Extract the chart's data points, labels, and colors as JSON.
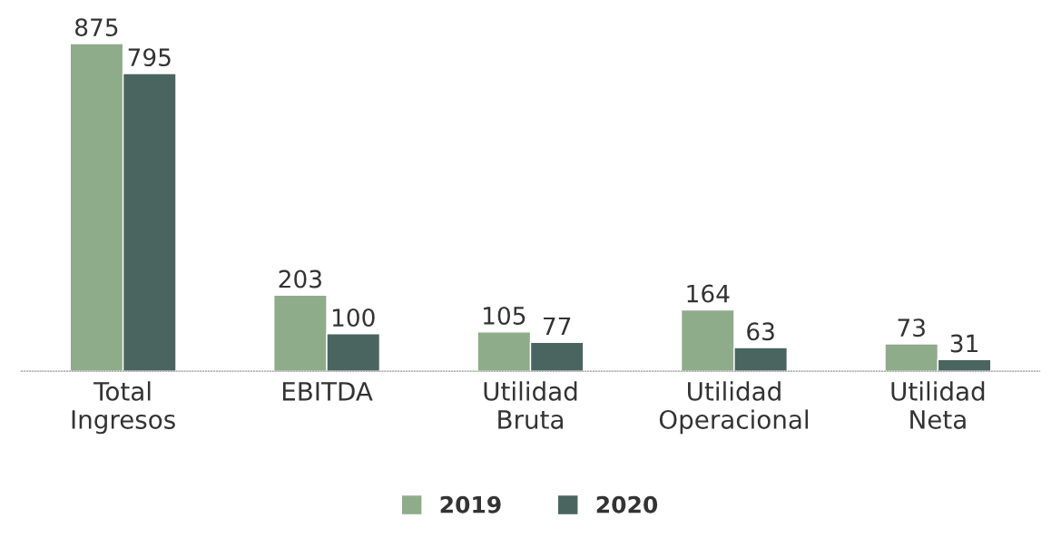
{
  "chart_data": {
    "type": "bar",
    "categories": [
      "Total\nIngresos",
      "EBITDA",
      "Utilidad\nBruta",
      "Utilidad\nOperacional",
      "Utilidad\nNeta"
    ],
    "series": [
      {
        "name": "2019",
        "color": "#8fac8a",
        "values": [
          875,
          203,
          105,
          164,
          73
        ]
      },
      {
        "name": "2020",
        "color": "#4a6560",
        "values": [
          795,
          100,
          77,
          63,
          31
        ]
      }
    ],
    "data_labels": true,
    "legend": "bottom",
    "grid": false
  }
}
